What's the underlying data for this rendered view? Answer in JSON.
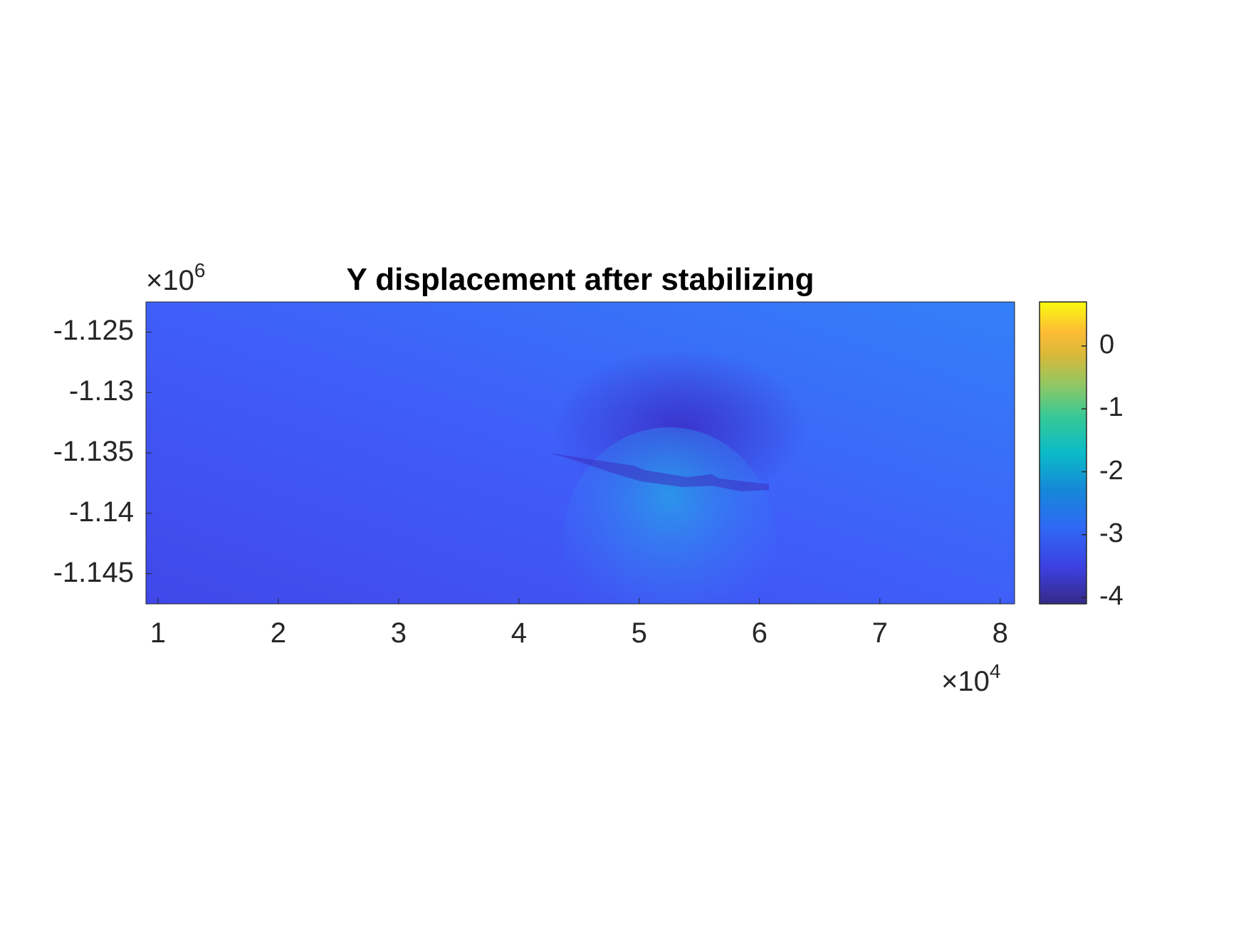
{
  "chart_data": {
    "type": "heatmap",
    "title": "Y displacement after stabilizing",
    "xlabel": "",
    "ylabel": "",
    "x_exponent_label": "×10",
    "x_exponent": "4",
    "y_exponent_label": "×10",
    "y_exponent": "6",
    "xlim": [
      0.9,
      8.12
    ],
    "ylim": [
      -1.1475,
      -1.1225
    ],
    "x_ticks": [
      1,
      2,
      3,
      4,
      5,
      6,
      7,
      8
    ],
    "x_tick_labels": [
      "1",
      "2",
      "3",
      "4",
      "5",
      "6",
      "7",
      "8"
    ],
    "y_ticks": [
      -1.125,
      -1.13,
      -1.135,
      -1.14,
      -1.145
    ],
    "y_tick_labels": [
      "-1.125",
      "-1.13",
      "-1.135",
      "-1.14",
      "-1.145"
    ],
    "colorbar": {
      "colormap": "parula",
      "clim": [
        -4.1,
        0.7
      ],
      "ticks": [
        0,
        -1,
        -2,
        -3,
        -4
      ],
      "tick_labels": [
        "0",
        "-1",
        "-2",
        "-3",
        "-4"
      ]
    },
    "field_description_values": {
      "background_min": -3.6,
      "background_max": -3.0,
      "source_x": 5.0,
      "source_y": -1.1365,
      "min_near_source": -4.0,
      "max_below_source": -2.6
    },
    "grid": false,
    "colors": {
      "low": "#3e26a8",
      "mid": "#2e87f7",
      "high": "#f9fb15"
    }
  }
}
